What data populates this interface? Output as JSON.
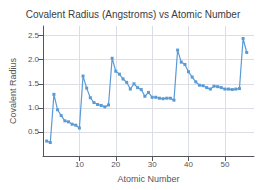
{
  "chart_data": {
    "type": "line",
    "title": "Covalent Radius (Angstroms) vs Atomic Number",
    "xlabel": "Atomic Number",
    "ylabel": "Covalent Radius",
    "x": [
      1,
      2,
      3,
      4,
      5,
      6,
      7,
      8,
      9,
      10,
      11,
      12,
      13,
      14,
      15,
      16,
      17,
      18,
      19,
      20,
      21,
      22,
      23,
      24,
      25,
      26,
      27,
      28,
      29,
      30,
      31,
      32,
      33,
      34,
      35,
      36,
      37,
      38,
      39,
      40,
      41,
      42,
      43,
      44,
      45,
      46,
      47,
      48,
      49,
      50,
      51,
      52,
      53,
      54,
      55,
      56
    ],
    "values": [
      0.31,
      0.28,
      1.28,
      0.96,
      0.84,
      0.73,
      0.71,
      0.66,
      0.64,
      0.58,
      1.66,
      1.41,
      1.21,
      1.11,
      1.07,
      1.05,
      1.02,
      1.06,
      2.03,
      1.76,
      1.7,
      1.6,
      1.53,
      1.39,
      1.5,
      1.42,
      1.38,
      1.24,
      1.32,
      1.22,
      1.22,
      1.2,
      1.19,
      1.2,
      1.2,
      1.16,
      2.2,
      1.95,
      1.9,
      1.75,
      1.64,
      1.54,
      1.47,
      1.46,
      1.42,
      1.39,
      1.45,
      1.44,
      1.42,
      1.39,
      1.39,
      1.38,
      1.39,
      1.4,
      2.44,
      2.15
    ],
    "color": "#5b9bd5",
    "marker": "square",
    "xlim": [
      0,
      58
    ],
    "ylim": [
      0.0,
      2.7
    ],
    "xticks": [
      10,
      20,
      30,
      40,
      50
    ],
    "yticks": [
      0.5,
      {
        "value": 1.0,
        "label": "1.0"
      },
      1.5,
      {
        "value": 2.0,
        "label": "2.0"
      },
      2.5
    ],
    "grid": true
  }
}
